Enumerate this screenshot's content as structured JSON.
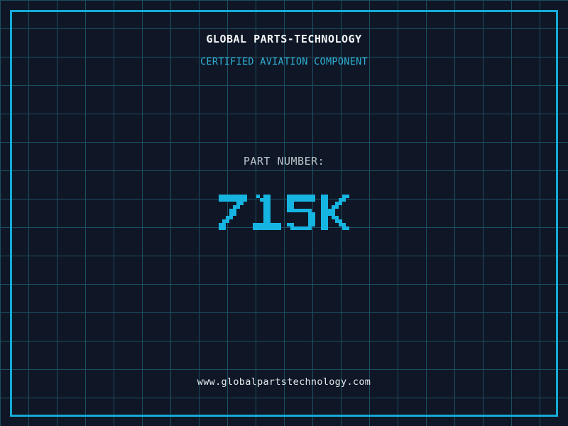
{
  "card": {
    "header": {
      "title": "GLOBAL PARTS-TECHNOLOGY",
      "subtitle": "CERTIFIED AVIATION COMPONENT"
    },
    "part": {
      "label": "PART NUMBER:",
      "number": "715K"
    },
    "footer": {
      "website": "www.globalpartstechnology.com"
    }
  },
  "colors": {
    "background": "#0f1726",
    "grid-line": "#1c4e61",
    "frame": "#14abd6",
    "title": "#f2f5f6",
    "subtitle": "#2fafd3",
    "part-label": "#bac4cb",
    "part-number": "#16b4e1",
    "website": "#e3e8eb"
  }
}
